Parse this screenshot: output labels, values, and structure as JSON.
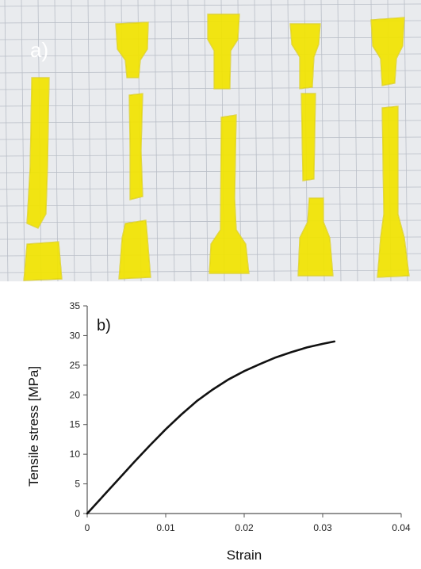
{
  "photo": {
    "panel_label": "a)",
    "paper_color": "#e9ebee",
    "grid_color": "#b9bec7",
    "specimen_color": "#f2e400",
    "specimen_edge_color": "#cfc200",
    "specimen_count": 5
  },
  "chart_data": {
    "type": "line",
    "panel_label": "b)",
    "title": "",
    "xlabel": "Strain",
    "ylabel": "Tensile stress [MPa]",
    "xlim": [
      0,
      0.04
    ],
    "ylim": [
      0,
      35
    ],
    "xticks": [
      0,
      0.01,
      0.02,
      0.03,
      0.04
    ],
    "xtick_labels": [
      "0",
      "0.01",
      "0.02",
      "0.03",
      "0.04"
    ],
    "yticks": [
      0,
      5,
      10,
      15,
      20,
      25,
      30,
      35
    ],
    "ytick_labels": [
      "0",
      "5",
      "10",
      "15",
      "20",
      "25",
      "30",
      "35"
    ],
    "grid": false,
    "line_color": "#111111",
    "series": [
      {
        "x": [
          0,
          0.002,
          0.004,
          0.006,
          0.008,
          0.01,
          0.012,
          0.014,
          0.016,
          0.018,
          0.02,
          0.022,
          0.024,
          0.026,
          0.028,
          0.03,
          0.0315
        ],
        "y": [
          0,
          2.9,
          5.8,
          8.7,
          11.5,
          14.2,
          16.7,
          19.0,
          20.9,
          22.6,
          24.0,
          25.2,
          26.3,
          27.2,
          28.0,
          28.6,
          29.0
        ]
      }
    ]
  }
}
